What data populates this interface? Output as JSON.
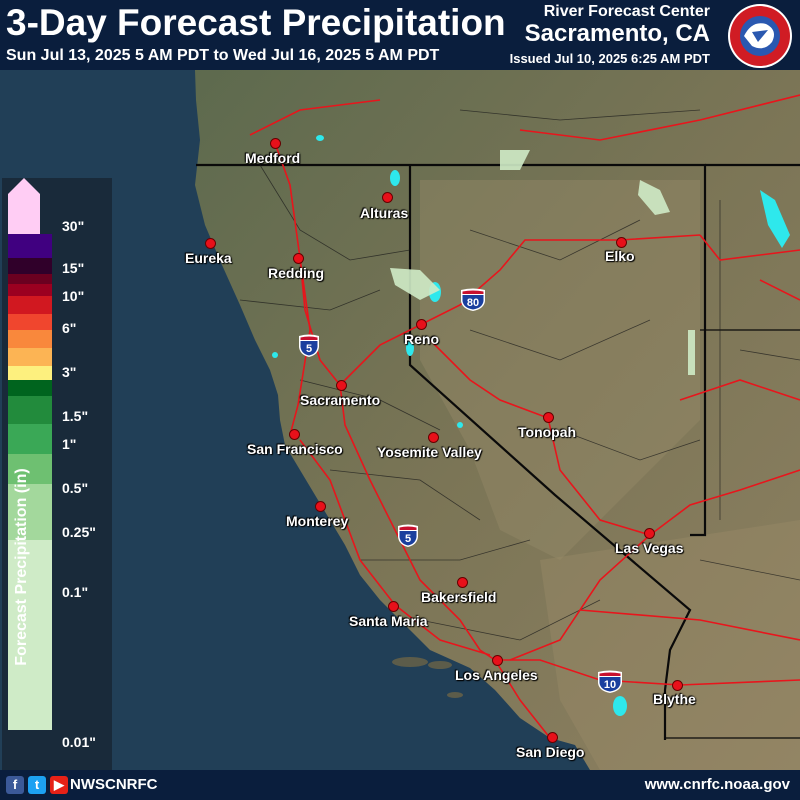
{
  "header": {
    "title": "3-Day Forecast Precipitation",
    "valid_range": "Sun Jul 13, 2025 5 AM PDT to Wed Jul 16, 2025 5 AM PDT",
    "center_line1": "River Forecast Center",
    "center_line2": "Sacramento, CA",
    "issued": "Issued Jul 10, 2025 6:25 AM PDT",
    "logo_text": "NATIONAL WEATHER SERVICE"
  },
  "footer": {
    "handle": "NWSCNRFC",
    "url": "www.cnrfc.noaa.gov",
    "social_icons": [
      "facebook-icon",
      "twitter-icon",
      "youtube-icon"
    ]
  },
  "legend": {
    "axis_label": "Forecast Precipitation (in)",
    "labels": [
      "30\"",
      "15\"",
      "10\"",
      "6\"",
      "3\"",
      "1.5\"",
      "1\"",
      "0.5\"",
      "0.25\"",
      "0.1\"",
      "0.01\""
    ],
    "colors": [
      "#ffcdf4",
      "#400080",
      "#30002a",
      "#6b0020",
      "#9b0020",
      "#d11820",
      "#f0462e",
      "#f9883c",
      "#fcb454",
      "#fdf07e",
      "#00641e",
      "#228b3c",
      "#3aa856",
      "#6ec071",
      "#a3d89c",
      "#cfebc7"
    ]
  },
  "cities": [
    {
      "name": "Medford"
    },
    {
      "name": "Alturas"
    },
    {
      "name": "Eureka"
    },
    {
      "name": "Redding"
    },
    {
      "name": "Elko"
    },
    {
      "name": "Reno"
    },
    {
      "name": "Sacramento"
    },
    {
      "name": "San Francisco"
    },
    {
      "name": "Yosemite Valley"
    },
    {
      "name": "Tonopah"
    },
    {
      "name": "Monterey"
    },
    {
      "name": "Las Vegas"
    },
    {
      "name": "Bakersfield"
    },
    {
      "name": "Santa Maria"
    },
    {
      "name": "Los Angeles"
    },
    {
      "name": "Blythe"
    },
    {
      "name": "San Diego"
    }
  ],
  "highways": [
    {
      "label": "5"
    },
    {
      "label": "80"
    },
    {
      "label": "5"
    },
    {
      "label": "10"
    }
  ]
}
